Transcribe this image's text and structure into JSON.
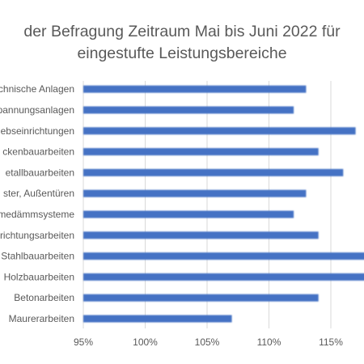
{
  "chart_data": {
    "type": "bar",
    "orientation": "horizontal",
    "title_lines": [
      "der Befragung Zeitraum Mai bis Juni 2022 für",
      "eingestufte Leistungsbereiche"
    ],
    "categories": [
      "Maurerarbeiten",
      "Betonarbeiten",
      "Holzbauarbeiten",
      "Stahlbauarbeiten",
      "richtungsarbeiten",
      "medämmsysteme",
      "ster, Außentüren",
      "etallbauarbeiten",
      "ckenbauarbeiten",
      "ebseinrichtungen",
      "pannungsanlagen",
      "chnische Anlagen"
    ],
    "values": [
      107,
      114,
      119,
      119,
      114,
      112,
      113,
      116,
      114,
      117,
      112,
      113
    ],
    "unit": "%",
    "xlim": [
      95,
      118
    ],
    "xticks": [
      "95%",
      "100%",
      "105%",
      "110%",
      "115%"
    ],
    "grid": true,
    "bar_color": "#4472c4",
    "legend": "none"
  }
}
